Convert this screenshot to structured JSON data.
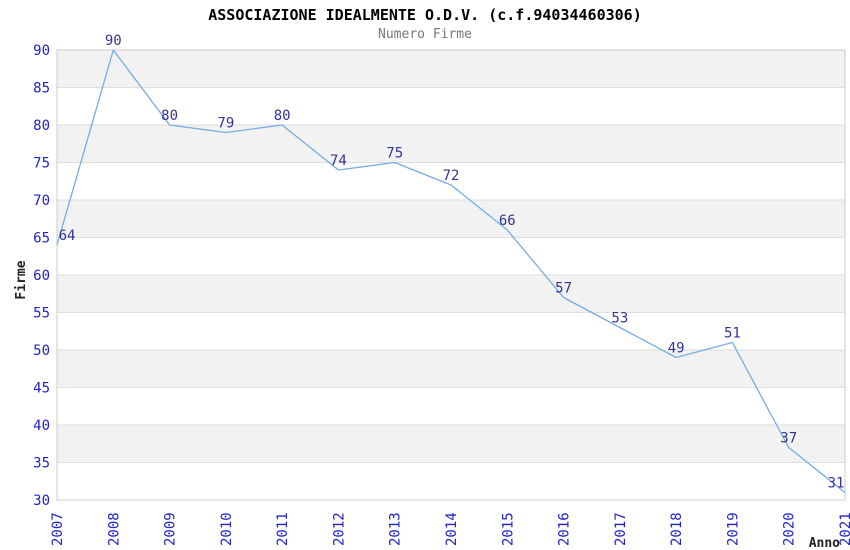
{
  "chart_data": {
    "type": "line",
    "title": "ASSOCIAZIONE IDEALMENTE O.D.V. (c.f.94034460306)",
    "subtitle": "Numero Firme",
    "xlabel": "Anno",
    "ylabel": "Firme",
    "categories": [
      "2007",
      "2008",
      "2009",
      "2010",
      "2011",
      "2012",
      "2013",
      "2014",
      "2015",
      "2016",
      "2017",
      "2018",
      "2019",
      "2020",
      "2021"
    ],
    "values": [
      64,
      90,
      80,
      79,
      80,
      74,
      75,
      72,
      66,
      57,
      53,
      49,
      51,
      37,
      31
    ],
    "data_labels": [
      "64",
      "90",
      "80",
      "79",
      "80",
      "74",
      "75",
      "72",
      "66",
      "57",
      "53",
      "49",
      "51",
      "37",
      "31"
    ],
    "y_ticks": [
      90,
      85,
      80,
      75,
      70,
      65,
      60,
      55,
      50,
      45,
      40,
      35,
      30
    ],
    "ylim": [
      30,
      90
    ],
    "ytick_step": 5,
    "grid": true,
    "banded_rows": true,
    "legend": "none",
    "colors": {
      "line": "#76ACE3",
      "tick_label": "#2121CC",
      "data_label": "#333399",
      "band": "#F2F2F2",
      "gridline": "#DEDEDE",
      "border": "#CCCCCC",
      "title": "#000000",
      "subtitle": "#787878",
      "axis_title": "#222222",
      "background": "#FFFFFF"
    }
  }
}
